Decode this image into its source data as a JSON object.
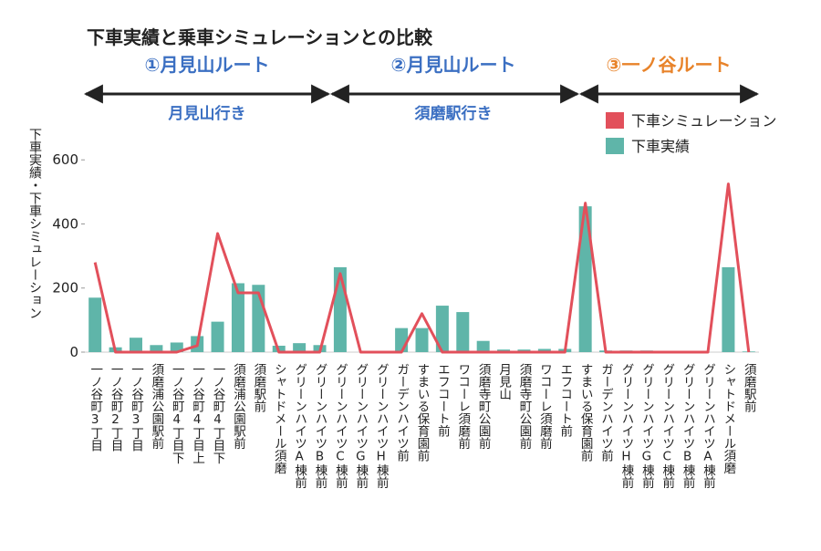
{
  "chart_data": {
    "type": "bar",
    "title": "下車実績と乗車シミュレーションとの比較",
    "annotations": [
      "①月見山ルート",
      "②月見山ルート",
      "③一ノ谷ルート",
      "月見山行き",
      "須磨駅行き"
    ],
    "annotation_colors": [
      "#3b6fc2",
      "#3b6fc2",
      "#e8832a",
      "#3b6fc2",
      "#3b6fc2"
    ],
    "y_label": "下車実績・下車シミュレーション",
    "categories": [
      "一ノ谷町3丁目",
      "一ノ谷町2丁目",
      "一ノ谷町3丁目",
      "須磨浦公園駅前",
      "一ノ谷町4丁目下",
      "一ノ谷町4丁目上",
      "一ノ谷町4丁目下",
      "須磨浦公園駅前",
      "須磨駅前",
      "シャトドメール須磨",
      "グリーンハイツA棟前",
      "グリーンハイツB棟前",
      "グリーンハイツC棟前",
      "グリーンハイツG棟前",
      "グリーンハイツH棟前",
      "ガーデンハイツ前",
      "すまいる保育園前",
      "エフコート前",
      "ワコーレ須磨前",
      "須磨寺町公園前",
      "月見山",
      "須磨寺町公園前",
      "ワコーレ須磨前",
      "エフコート前",
      "すまいる保育園前",
      "ガーデンハイツ前",
      "グリーンハイツH棟前",
      "グリーンハイツG棟前",
      "グリーンハイツC棟前",
      "グリーンハイツB棟前",
      "グリーンハイツA棟前",
      "シャトドメール須磨",
      "須磨駅前"
    ],
    "series": [
      {
        "name": "下車シミュレーション",
        "type": "line",
        "color": "#e2505b",
        "values": [
          280,
          0,
          0,
          0,
          0,
          20,
          370,
          185,
          185,
          0,
          0,
          0,
          245,
          0,
          0,
          0,
          120,
          0,
          0,
          0,
          0,
          0,
          0,
          0,
          465,
          0,
          0,
          0,
          0,
          0,
          0,
          525,
          0
        ]
      },
      {
        "name": "下車実績",
        "type": "bar",
        "color": "#5fb5a9",
        "values": [
          170,
          15,
          45,
          22,
          30,
          50,
          95,
          215,
          210,
          20,
          28,
          22,
          265,
          0,
          0,
          75,
          75,
          145,
          125,
          35,
          8,
          8,
          10,
          10,
          455,
          5,
          5,
          5,
          0,
          0,
          0,
          265,
          2
        ]
      }
    ],
    "ylim": [
      0,
      780
    ],
    "yticks": [
      0,
      200,
      400,
      600
    ],
    "legend": "top-right"
  }
}
